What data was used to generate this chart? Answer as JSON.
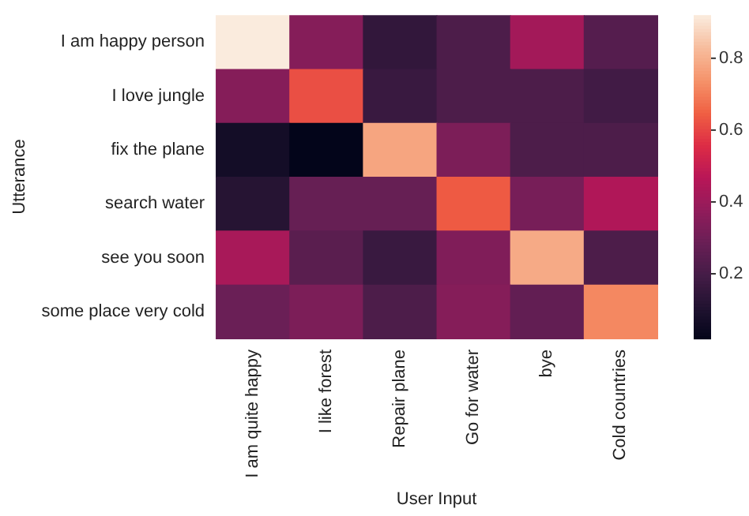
{
  "chart_data": {
    "type": "heatmap",
    "xlabel": "User Input",
    "ylabel": "Utterance",
    "categories": [
      "I am quite happy",
      "I like forest",
      "Repair plane",
      "Go for water",
      "bye",
      "Cold countries"
    ],
    "y_categories": [
      "I am happy person",
      "I love jungle",
      "fix the plane",
      "search water",
      "see you soon",
      "some place very cold"
    ],
    "cells": [
      [
        0.92,
        0.35,
        0.15,
        0.22,
        0.42,
        0.24
      ],
      [
        0.35,
        0.62,
        0.17,
        0.22,
        0.22,
        0.19
      ],
      [
        0.07,
        0.02,
        0.78,
        0.33,
        0.22,
        0.22
      ],
      [
        0.12,
        0.28,
        0.28,
        0.64,
        0.32,
        0.45
      ],
      [
        0.43,
        0.25,
        0.17,
        0.34,
        0.79,
        0.22
      ],
      [
        0.29,
        0.33,
        0.22,
        0.35,
        0.27,
        0.72
      ]
    ],
    "clim": [
      0.02,
      0.92
    ],
    "cticks": [
      0.2,
      0.4,
      0.6,
      0.8
    ]
  }
}
